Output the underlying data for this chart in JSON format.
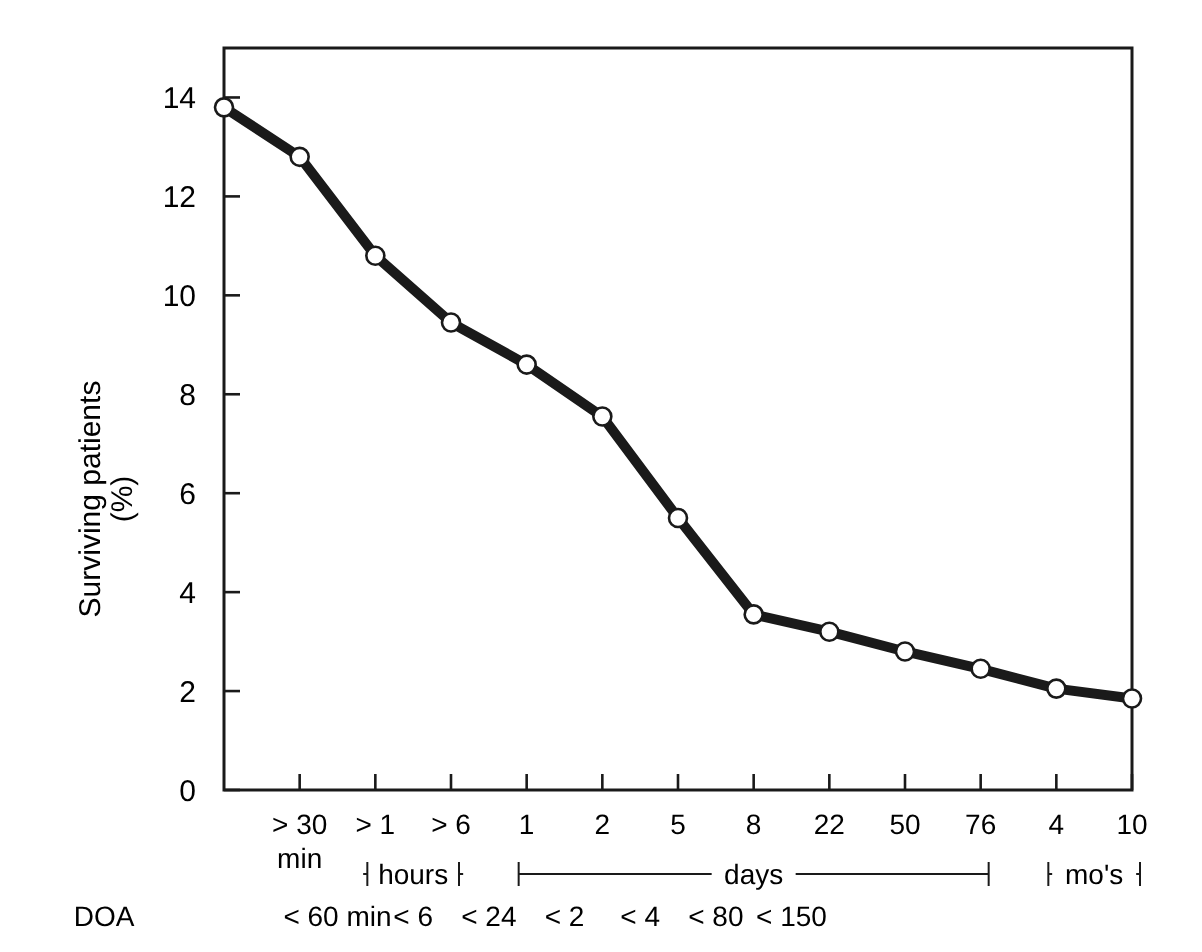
{
  "chart_data": {
    "type": "line",
    "ylabel": "Surviving patients (%)",
    "categories": [
      null,
      "> 30 min",
      "> 1",
      "> 6",
      "1",
      "2",
      "5",
      "8",
      "22",
      "50",
      "76",
      "4",
      "10"
    ],
    "series": [
      {
        "color": "#1a1a1a",
        "values": [
          13.8,
          12.8,
          10.8,
          9.45,
          8.6,
          7.55,
          5.5,
          3.55,
          3.2,
          2.8,
          2.45,
          2.05,
          1.85
        ]
      }
    ],
    "ylim": [
      0,
      15
    ],
    "yticks": [
      0,
      2,
      4,
      6,
      8,
      10,
      12,
      14
    ],
    "grid": false,
    "marker": "circle",
    "line_style": "solid",
    "annotations": [
      "hours",
      "days",
      "mo's",
      "DOA",
      "< 60 min",
      "< 6",
      "< 24",
      "< 2",
      "< 4",
      "< 80",
      "< 150"
    ]
  }
}
